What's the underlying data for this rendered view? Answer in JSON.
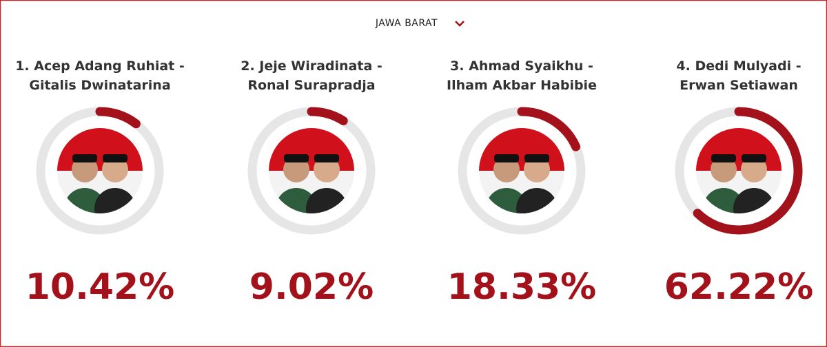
{
  "header": {
    "region": "JAWA BARAT"
  },
  "scale": [
    0,
    100
  ],
  "candidates": [
    {
      "name_lines": [
        "1. Acep Adang Ruhiat -",
        "Gitalis Dwinatarina"
      ],
      "value": 10.42,
      "value_label": "10.42%"
    },
    {
      "name_lines": [
        "2. Jeje Wiradinata -",
        "Ronal Surapradja"
      ],
      "value": 9.02,
      "value_label": "9.02%"
    },
    {
      "name_lines": [
        "3. Ahmad Syaikhu -",
        "Ilham Akbar Habibie"
      ],
      "value": 18.33,
      "value_label": "18.33%"
    },
    {
      "name_lines": [
        "4. Dedi Mulyadi -",
        "Erwan Setiawan"
      ],
      "value": 62.22,
      "value_label": "62.22%"
    }
  ]
}
